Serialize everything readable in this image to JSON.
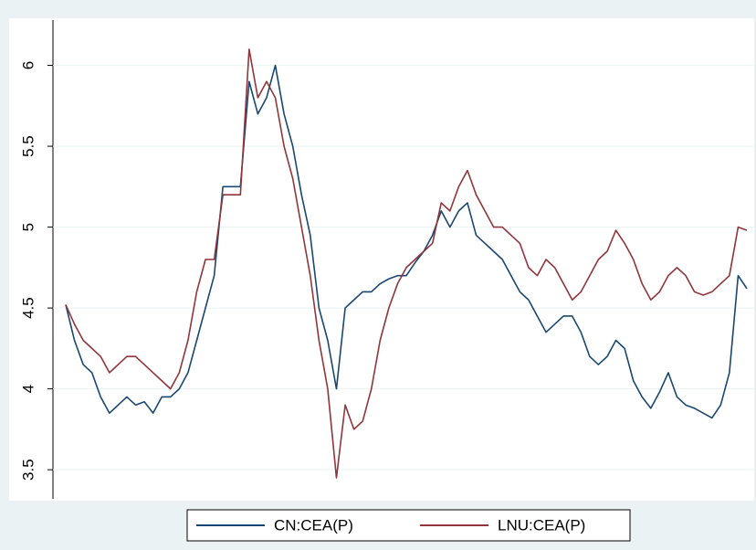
{
  "chart_data": {
    "type": "line",
    "series": [
      {
        "name": "CN:CEA(P)",
        "color": "#1a476f",
        "values": [
          4.52,
          4.3,
          4.15,
          4.1,
          3.95,
          3.85,
          3.9,
          3.95,
          3.9,
          3.92,
          3.85,
          3.95,
          3.95,
          4.0,
          4.1,
          4.3,
          4.5,
          4.7,
          5.25,
          5.25,
          5.25,
          5.9,
          5.7,
          5.8,
          6.0,
          5.7,
          5.5,
          5.2,
          4.95,
          4.5,
          4.3,
          4.0,
          4.5,
          4.55,
          4.6,
          4.6,
          4.65,
          4.68,
          4.7,
          4.7,
          4.78,
          4.85,
          4.95,
          5.1,
          5.0,
          5.1,
          5.15,
          4.95,
          4.9,
          4.85,
          4.8,
          4.7,
          4.6,
          4.55,
          4.45,
          4.35,
          4.4,
          4.45,
          4.45,
          4.35,
          4.2,
          4.15,
          4.2,
          4.3,
          4.25,
          4.05,
          3.95,
          3.88,
          3.98,
          4.1,
          3.95,
          3.9,
          3.88,
          3.85,
          3.82,
          3.9,
          4.1,
          4.7,
          4.62
        ]
      },
      {
        "name": "LNU:CEA(P)",
        "color": "#90353b",
        "values": [
          4.52,
          4.4,
          4.3,
          4.25,
          4.2,
          4.1,
          4.15,
          4.2,
          4.2,
          4.15,
          4.1,
          4.05,
          4.0,
          4.1,
          4.3,
          4.6,
          4.8,
          4.8,
          5.2,
          5.2,
          5.2,
          6.1,
          5.8,
          5.9,
          5.8,
          5.5,
          5.3,
          5.0,
          4.7,
          4.3,
          4.0,
          3.45,
          3.9,
          3.75,
          3.8,
          4.0,
          4.3,
          4.5,
          4.65,
          4.75,
          4.8,
          4.85,
          4.9,
          5.15,
          5.1,
          5.25,
          5.35,
          5.2,
          5.1,
          5.0,
          5.0,
          4.95,
          4.9,
          4.75,
          4.7,
          4.8,
          4.75,
          4.65,
          4.55,
          4.6,
          4.7,
          4.8,
          4.85,
          4.98,
          4.9,
          4.8,
          4.65,
          4.55,
          4.6,
          4.7,
          4.75,
          4.7,
          4.6,
          4.58,
          4.6,
          4.65,
          4.7,
          5.0,
          4.98
        ]
      }
    ],
    "ylim": [
      3.32,
      6.28
    ],
    "yticks": [
      3.5,
      4,
      4.5,
      5,
      5.5,
      6
    ],
    "grid": true
  }
}
